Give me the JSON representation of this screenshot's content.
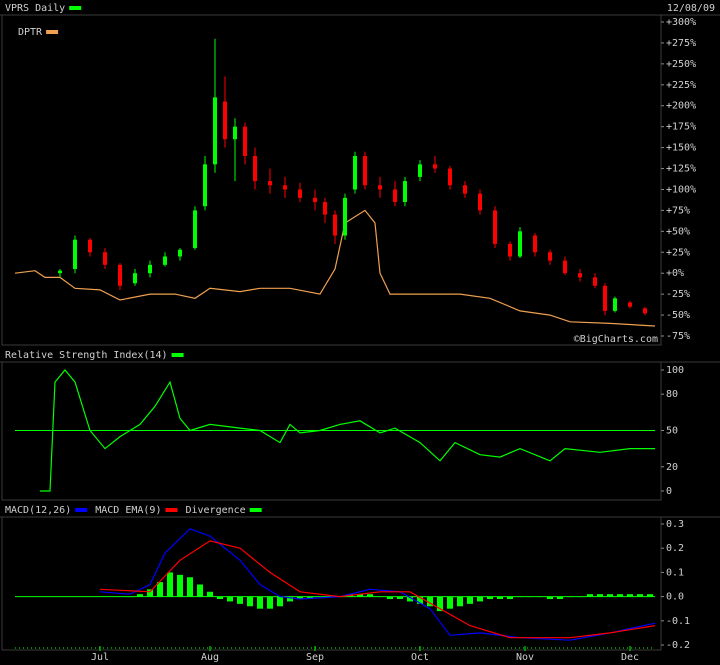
{
  "chart_data": [
    {
      "type": "candlestick",
      "title": "VPRS Daily",
      "date": "12/08/09",
      "credit": "©BigCharts.com",
      "up_color": "#00ff00",
      "down_color": "#ff0000",
      "x": [
        9,
        12,
        15,
        18,
        21,
        24,
        27,
        30,
        33,
        36,
        38,
        40,
        42,
        44,
        46,
        48,
        51,
        54,
        57,
        60,
        62,
        64,
        66,
        68,
        70,
        73,
        76,
        78,
        81,
        84,
        87,
        90,
        93,
        96,
        99,
        101,
        104,
        107,
        110,
        113,
        116,
        118,
        120,
        123,
        126
      ],
      "open": [
        0,
        5,
        40,
        25,
        10,
        -12,
        0,
        10,
        20,
        30,
        80,
        130,
        205,
        160,
        175,
        140,
        110,
        105,
        100,
        90,
        85,
        70,
        45,
        100,
        140,
        105,
        100,
        85,
        115,
        130,
        125,
        105,
        95,
        75,
        35,
        20,
        45,
        25,
        15,
        0,
        -5,
        -15,
        -45,
        -35,
        -42
      ],
      "high": [
        5,
        45,
        42,
        30,
        12,
        5,
        15,
        25,
        30,
        80,
        140,
        280,
        235,
        185,
        180,
        150,
        125,
        115,
        108,
        100,
        90,
        75,
        95,
        145,
        145,
        115,
        110,
        115,
        135,
        140,
        128,
        110,
        100,
        80,
        38,
        55,
        48,
        28,
        20,
        5,
        0,
        -12,
        -28,
        -33,
        -40
      ],
      "low": [
        -5,
        0,
        20,
        5,
        -20,
        -15,
        -5,
        8,
        15,
        28,
        75,
        120,
        150,
        110,
        130,
        100,
        95,
        90,
        85,
        75,
        60,
        35,
        40,
        95,
        100,
        90,
        80,
        80,
        110,
        120,
        100,
        90,
        70,
        30,
        15,
        18,
        20,
        10,
        -2,
        -10,
        -18,
        -50,
        -47,
        -42,
        -50
      ],
      "close": [
        3,
        40,
        25,
        10,
        -15,
        0,
        10,
        20,
        28,
        75,
        130,
        210,
        160,
        175,
        140,
        110,
        105,
        100,
        90,
        85,
        70,
        45,
        90,
        140,
        105,
        100,
        85,
        110,
        130,
        125,
        105,
        95,
        75,
        35,
        20,
        50,
        25,
        15,
        0,
        -5,
        -15,
        -45,
        -30,
        -40,
        -48
      ],
      "series": [
        {
          "name": "DPTR",
          "color": "#f0a050",
          "x": [
            0,
            4,
            6,
            9,
            12,
            17,
            21,
            27,
            32,
            36,
            39,
            45,
            49,
            55,
            61,
            64,
            66,
            70,
            72,
            73,
            75,
            81,
            89,
            95,
            101,
            107,
            111,
            119,
            128
          ],
          "values": [
            0,
            3,
            -5,
            -5,
            -18,
            -20,
            -32,
            -25,
            -25,
            -30,
            -18,
            -22,
            -18,
            -18,
            -25,
            5,
            60,
            75,
            60,
            0,
            -25,
            -25,
            -25,
            -30,
            -45,
            -50,
            -58,
            -60,
            -63
          ]
        }
      ],
      "xlim": [
        0,
        128
      ],
      "ylim": [
        -75,
        300
      ],
      "yticks": [
        {
          "value": 300,
          "label": "+300%"
        },
        {
          "value": 275,
          "label": "+275%"
        },
        {
          "value": 250,
          "label": "+250%"
        },
        {
          "value": 225,
          "label": "+225%"
        },
        {
          "value": 200,
          "label": "+200%"
        },
        {
          "value": 175,
          "label": "+175%"
        },
        {
          "value": 150,
          "label": "+150%"
        },
        {
          "value": 125,
          "label": "+125%"
        },
        {
          "value": 100,
          "label": "+100%"
        },
        {
          "value": 75,
          "label": "+75%"
        },
        {
          "value": 50,
          "label": "+50%"
        },
        {
          "value": 25,
          "label": "+25%"
        },
        {
          "value": 0,
          "label": "+0%"
        },
        {
          "value": -25,
          "label": "-25%"
        },
        {
          "value": -50,
          "label": "-50%"
        },
        {
          "value": -75,
          "label": "-75%"
        }
      ]
    },
    {
      "type": "line",
      "series": [
        {
          "name": "Relative Strength Index(14)",
          "color": "#00ff00",
          "x": [
            5,
            7,
            8,
            10,
            12,
            15,
            18,
            21,
            25,
            28,
            31,
            33,
            35,
            39,
            45,
            49,
            53,
            55,
            57,
            61,
            65,
            69,
            73,
            76,
            81,
            85,
            88,
            93,
            97,
            101,
            107,
            110,
            117,
            123,
            128
          ],
          "values": [
            0,
            0,
            90,
            100,
            90,
            50,
            35,
            45,
            55,
            70,
            90,
            60,
            50,
            55,
            52,
            50,
            40,
            55,
            48,
            50,
            55,
            58,
            48,
            52,
            40,
            25,
            40,
            30,
            28,
            35,
            25,
            35,
            32,
            35,
            35
          ]
        }
      ],
      "hline": 50,
      "hline_color": "#00ff00",
      "xlim": [
        0,
        128
      ],
      "ylim": [
        0,
        100
      ],
      "yticks": [
        100,
        80,
        50,
        20,
        0
      ]
    },
    {
      "type": "macd",
      "series": [
        {
          "name": "MACD(12,26)",
          "color": "#0000ff",
          "x": [
            17,
            23,
            27,
            30,
            35,
            39,
            45,
            49,
            53,
            57,
            65,
            71,
            77,
            83,
            87,
            93,
            101,
            111,
            119,
            128
          ],
          "values": [
            0.02,
            0.01,
            0.05,
            0.18,
            0.28,
            0.25,
            0.15,
            0.05,
            0.0,
            -0.01,
            0.0,
            0.03,
            0.02,
            -0.05,
            -0.16,
            -0.15,
            -0.17,
            -0.18,
            -0.15,
            -0.11
          ]
        },
        {
          "name": "MACD EMA(9)",
          "color": "#ff0000",
          "x": [
            17,
            27,
            33,
            39,
            45,
            51,
            57,
            65,
            73,
            79,
            85,
            91,
            99,
            111,
            119,
            128
          ],
          "values": [
            0.03,
            0.02,
            0.15,
            0.23,
            0.2,
            0.1,
            0.02,
            0.0,
            0.02,
            0.02,
            -0.05,
            -0.12,
            -0.17,
            -0.17,
            -0.15,
            -0.12
          ]
        },
        {
          "name": "Divergence",
          "color": "#00ff00",
          "type": "bar",
          "x": [
            23,
            25,
            27,
            29,
            31,
            33,
            35,
            37,
            39,
            41,
            43,
            45,
            47,
            49,
            51,
            53,
            55,
            57,
            59,
            61,
            63,
            65,
            67,
            69,
            71,
            73,
            75,
            77,
            79,
            81,
            83,
            85,
            87,
            89,
            91,
            93,
            95,
            97,
            99,
            101,
            103,
            105,
            107,
            109,
            111,
            113,
            115,
            117,
            119,
            121,
            123,
            125,
            127
          ],
          "values": [
            0.0,
            0.01,
            0.03,
            0.06,
            0.1,
            0.09,
            0.08,
            0.05,
            0.02,
            -0.01,
            -0.02,
            -0.03,
            -0.04,
            -0.05,
            -0.05,
            -0.04,
            -0.02,
            -0.01,
            -0.01,
            0.0,
            0.0,
            0.0,
            0.01,
            0.01,
            0.01,
            0.0,
            -0.01,
            -0.01,
            -0.02,
            -0.03,
            -0.04,
            -0.06,
            -0.05,
            -0.04,
            -0.03,
            -0.02,
            -0.01,
            -0.01,
            -0.01,
            0.0,
            0.0,
            0.0,
            -0.01,
            -0.01,
            0.0,
            0.0,
            0.01,
            0.01,
            0.01,
            0.01,
            0.01,
            0.01,
            0.01
          ]
        }
      ],
      "xlim": [
        0,
        128
      ],
      "ylim": [
        -0.2,
        0.3
      ],
      "yticks": [
        0.3,
        0.2,
        0.1,
        {
          "value": 0,
          "label": "0.0"
        },
        -0.1,
        -0.2
      ],
      "xticks": [
        {
          "value": 17,
          "label": "Jul"
        },
        {
          "value": 39,
          "label": "Aug"
        },
        {
          "value": 60,
          "label": "Sep"
        },
        {
          "value": 81,
          "label": "Oct"
        },
        {
          "value": 102,
          "label": "Nov"
        },
        {
          "value": 123,
          "label": "Dec"
        }
      ]
    }
  ]
}
